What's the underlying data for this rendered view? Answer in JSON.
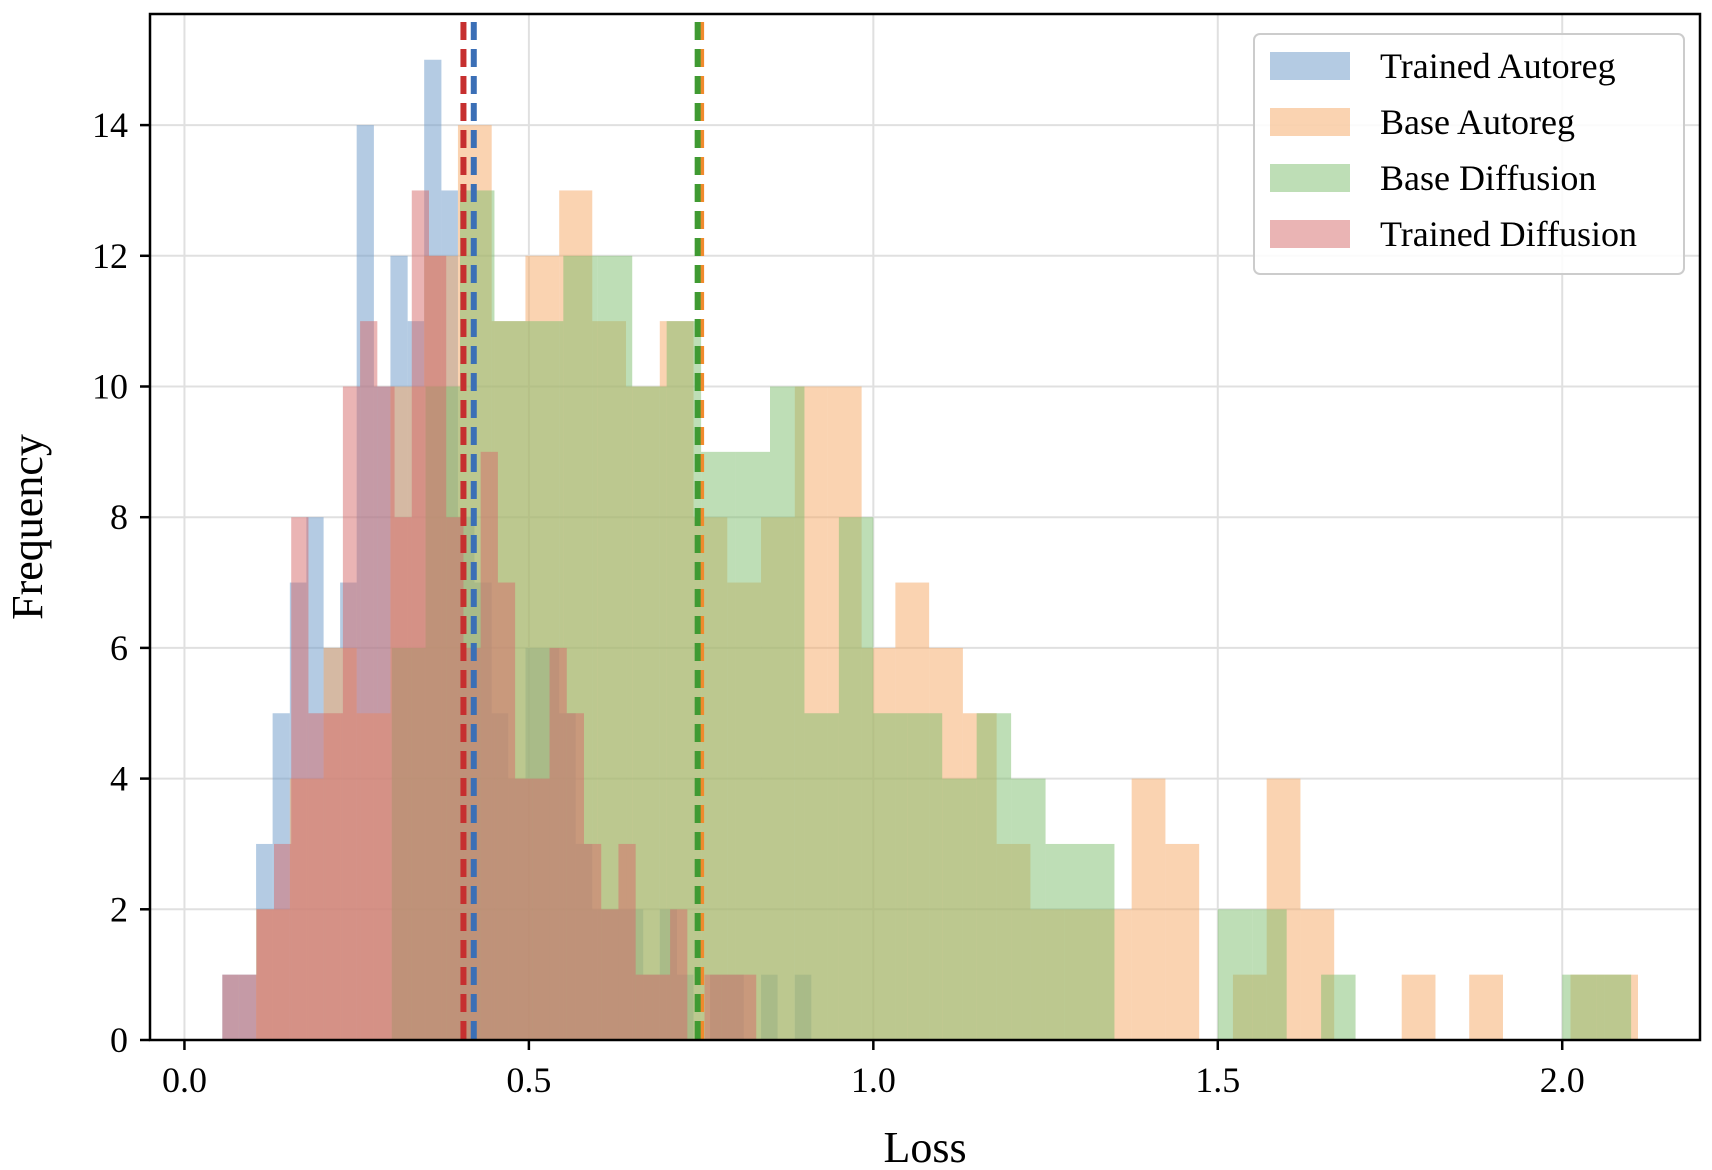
{
  "chart_data": {
    "type": "histogram",
    "title": "",
    "xlabel": "Loss",
    "ylabel": "Frequency",
    "xlim": [
      -0.05,
      2.2
    ],
    "ylim": [
      0,
      15.7
    ],
    "xticks": [
      0.0,
      0.5,
      1.0,
      1.5,
      2.0
    ],
    "xtick_labels": [
      "0.0",
      "0.5",
      "1.0",
      "1.5",
      "2.0"
    ],
    "yticks": [
      0,
      2,
      4,
      6,
      8,
      10,
      12,
      14
    ],
    "ytick_labels": [
      "0",
      "2",
      "4",
      "6",
      "8",
      "10",
      "12",
      "14"
    ],
    "grid": true,
    "legend_position": "top-right",
    "series": [
      {
        "name": "Trained Autoreg",
        "color": "#6a98c8",
        "mean_line_color": "#3b6fb6",
        "mean": 0.42,
        "bin_edges": [
          0.055,
          0.079,
          0.104,
          0.128,
          0.153,
          0.177,
          0.202,
          0.226,
          0.25,
          0.275,
          0.299,
          0.324,
          0.348,
          0.373,
          0.397,
          0.421,
          0.446,
          0.47,
          0.495,
          0.519,
          0.544,
          0.568,
          0.592,
          0.617,
          0.641,
          0.666,
          0.69,
          0.715,
          0.739,
          0.763,
          0.788,
          0.812,
          0.837,
          0.861,
          0.886,
          0.91
        ],
        "counts": [
          1,
          1,
          3,
          5,
          7,
          8,
          6,
          7,
          14,
          10,
          12,
          11,
          15,
          13,
          8,
          7,
          5,
          4,
          6,
          6,
          5,
          3,
          2,
          2,
          2,
          1,
          2,
          1,
          0,
          1,
          1,
          0,
          1,
          0,
          1
        ]
      },
      {
        "name": "Base Autoreg",
        "color": "#f5a864",
        "mean_line_color": "#f08a2c",
        "mean": 0.75,
        "bin_edges": [
          0.104,
          0.153,
          0.202,
          0.25,
          0.299,
          0.348,
          0.397,
          0.446,
          0.495,
          0.544,
          0.592,
          0.641,
          0.69,
          0.739,
          0.788,
          0.837,
          0.886,
          0.934,
          0.983,
          1.032,
          1.081,
          1.13,
          1.179,
          1.228,
          1.277,
          1.326,
          1.375,
          1.424,
          1.473,
          1.522,
          1.571,
          1.62,
          1.669,
          1.718,
          1.767,
          1.816,
          1.865,
          1.914,
          1.963,
          2.012,
          2.061,
          2.11
        ],
        "counts": [
          2,
          4,
          6,
          5,
          10,
          12,
          14,
          11,
          12,
          13,
          11,
          10,
          11,
          8,
          7,
          8,
          10,
          10,
          6,
          7,
          6,
          5,
          3,
          2,
          2,
          2,
          4,
          3,
          0,
          1,
          4,
          2,
          0,
          0,
          1,
          0,
          1,
          0,
          0,
          1,
          1
        ]
      },
      {
        "name": "Base Diffusion",
        "color": "#7dbd6e",
        "mean_line_color": "#3f9a32",
        "mean": 0.745,
        "bin_edges": [
          0.301,
          0.35,
          0.4,
          0.45,
          0.5,
          0.55,
          0.6,
          0.65,
          0.7,
          0.75,
          0.8,
          0.85,
          0.9,
          0.95,
          1.0,
          1.05,
          1.1,
          1.15,
          1.2,
          1.25,
          1.3,
          1.35,
          1.4,
          1.45,
          1.5,
          1.55,
          1.6,
          1.65,
          1.7,
          1.75,
          1.8,
          1.85,
          1.9,
          1.95,
          2.0,
          2.05,
          2.1
        ],
        "counts": [
          6,
          10,
          13,
          11,
          11,
          12,
          12,
          10,
          11,
          9,
          9,
          10,
          5,
          8,
          5,
          5,
          4,
          5,
          4,
          3,
          3,
          0,
          0,
          0,
          2,
          2,
          0,
          1,
          0,
          0,
          0,
          0,
          0,
          0,
          1,
          1
        ]
      },
      {
        "name": "Trained Diffusion",
        "color": "#d56a6a",
        "mean_line_color": "#c62f2f",
        "mean": 0.405,
        "bin_edges": [
          0.055,
          0.08,
          0.105,
          0.13,
          0.155,
          0.18,
          0.205,
          0.23,
          0.255,
          0.28,
          0.305,
          0.33,
          0.355,
          0.38,
          0.405,
          0.43,
          0.455,
          0.48,
          0.505,
          0.53,
          0.555,
          0.58,
          0.605,
          0.63,
          0.655,
          0.68,
          0.705,
          0.73,
          0.755,
          0.78,
          0.805,
          0.83
        ],
        "counts": [
          1,
          1,
          2,
          3,
          8,
          5,
          5,
          10,
          11,
          10,
          8,
          13,
          12,
          8,
          6,
          9,
          7,
          4,
          4,
          6,
          5,
          3,
          2,
          3,
          1,
          1,
          2,
          0,
          1,
          1,
          1
        ]
      }
    ]
  }
}
